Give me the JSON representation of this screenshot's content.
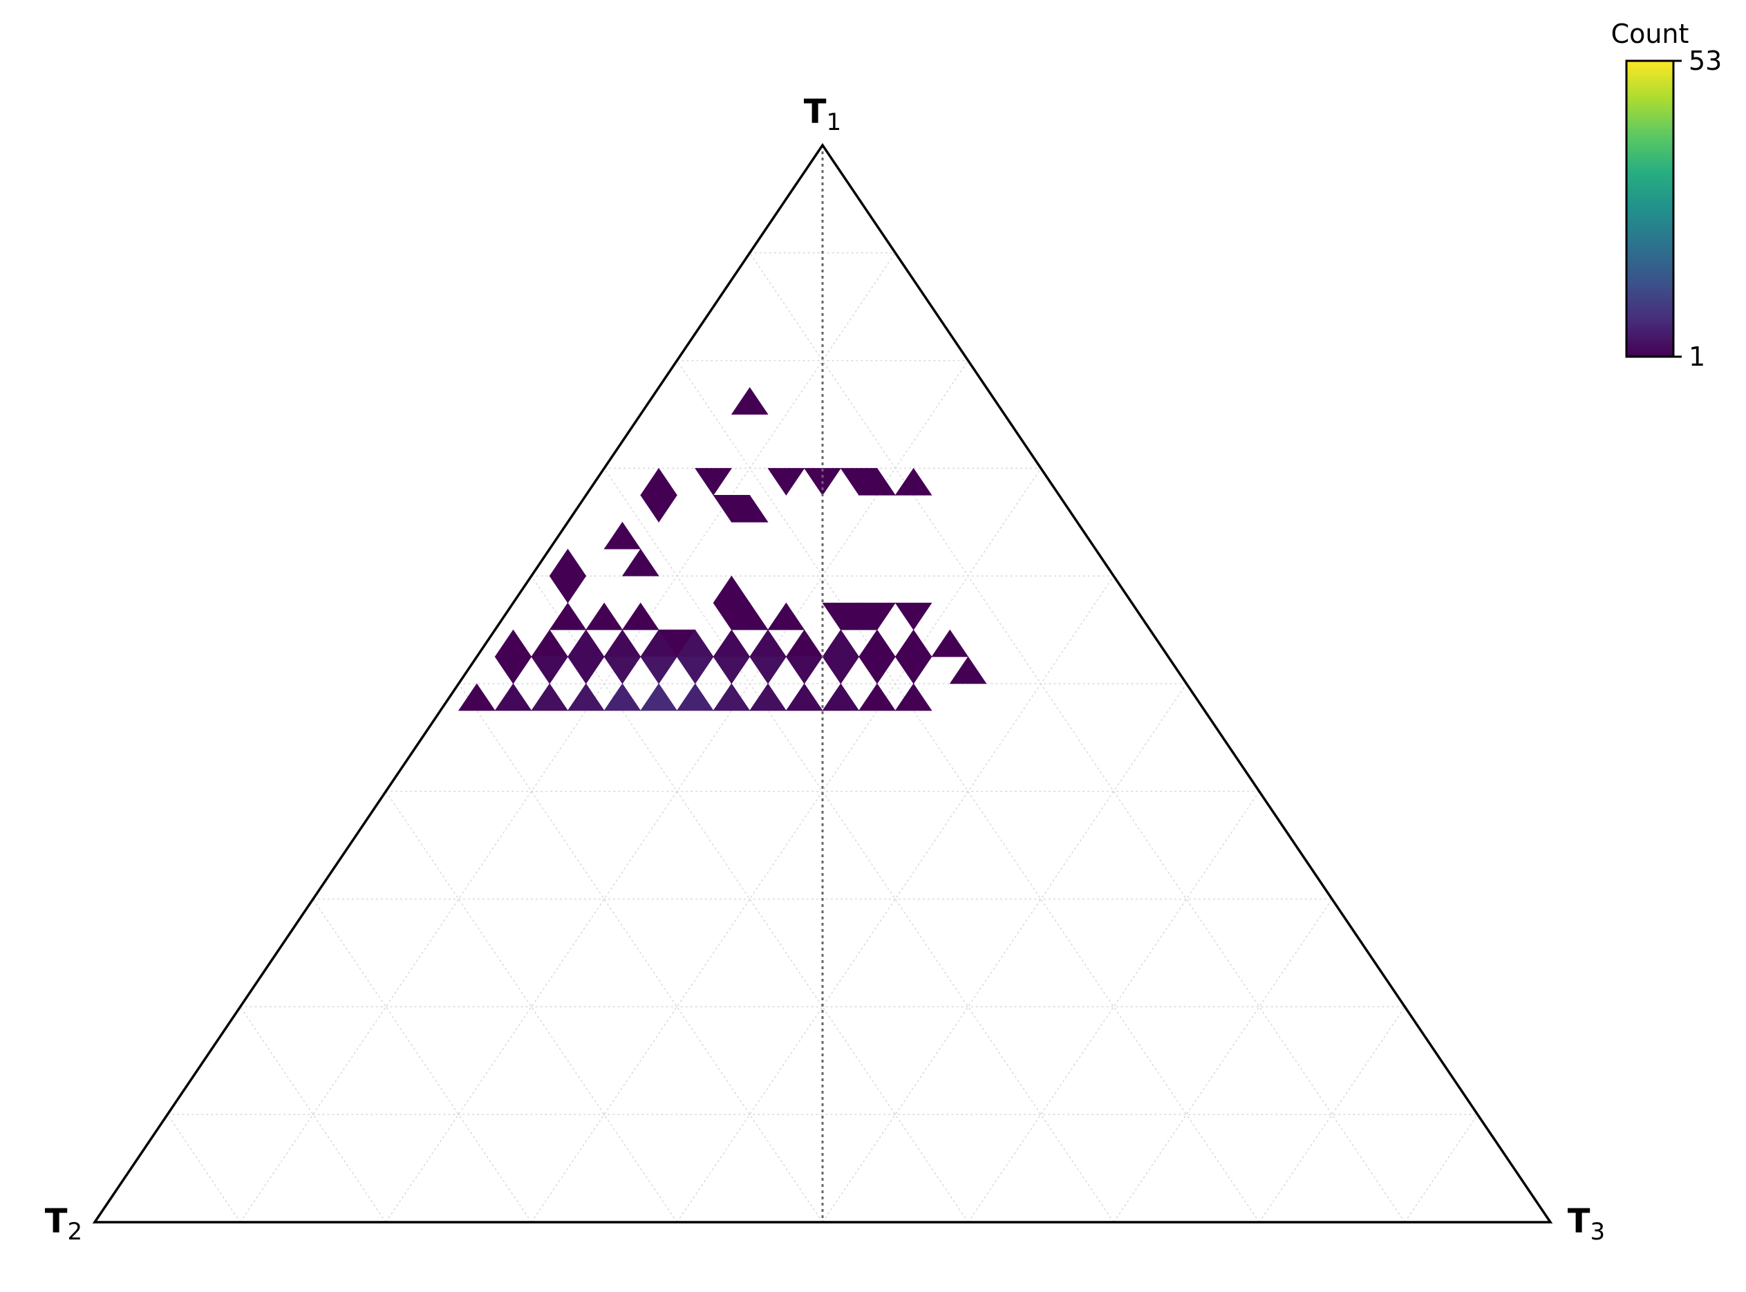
{
  "chart_data": {
    "type": "heatmap",
    "subtype": "ternary-hexbin-triangles",
    "resolution": 10,
    "vertices": {
      "top": {
        "main": "T",
        "sub": "1"
      },
      "left": {
        "main": "T",
        "sub": "2"
      },
      "right": {
        "main": "T",
        "sub": "3"
      }
    },
    "colorbar": {
      "title": "Count",
      "min": 1,
      "max": 53,
      "min_label": "1",
      "max_label": "53",
      "colormap": "viridis"
    },
    "grid": true,
    "median_line": true,
    "cells": [
      [
        0,
        3,
        1,
        0,
        1
      ],
      [
        0,
        3,
        2,
        1,
        1
      ],
      [
        0,
        3,
        4,
        1,
        1
      ],
      [
        0,
        3,
        5,
        1,
        1
      ],
      [
        0,
        4,
        5,
        0,
        1
      ],
      [
        0,
        3,
        6,
        1,
        1
      ],
      [
        0,
        3,
        7,
        0,
        1
      ],
      [
        0,
        3,
        8,
        0,
        1
      ],
      [
        1,
        2,
        2,
        0,
        1
      ],
      [
        1,
        3,
        1,
        1,
        1
      ],
      [
        1,
        3,
        3,
        1,
        1
      ],
      [
        1,
        4,
        1,
        0,
        1
      ],
      [
        1,
        4,
        2,
        0,
        1
      ],
      [
        1,
        4,
        3,
        0,
        1
      ],
      [
        1,
        3,
        4,
        0,
        1
      ],
      [
        1,
        4,
        5,
        1,
        1
      ],
      [
        1,
        4,
        6,
        0,
        1
      ],
      [
        1,
        4,
        7,
        0,
        1
      ],
      [
        1,
        4,
        8,
        1,
        1
      ],
      [
        1,
        4,
        9,
        0,
        1
      ],
      [
        1,
        4,
        9,
        1,
        1
      ],
      [
        1,
        4,
        10,
        1,
        1
      ],
      [
        2,
        3,
        1,
        0,
        1
      ],
      [
        2,
        4,
        0,
        0,
        1
      ],
      [
        2,
        4,
        1,
        0,
        1
      ],
      [
        2,
        4,
        2,
        0,
        2
      ],
      [
        2,
        4,
        3,
        0,
        2
      ],
      [
        2,
        4,
        4,
        0,
        2
      ],
      [
        2,
        4,
        4,
        1,
        1
      ],
      [
        2,
        4,
        5,
        0,
        3
      ],
      [
        2,
        4,
        6,
        0,
        2
      ],
      [
        2,
        4,
        7,
        0,
        2
      ],
      [
        2,
        4,
        8,
        0,
        1
      ],
      [
        2,
        4,
        9,
        0,
        2
      ],
      [
        2,
        4,
        10,
        0,
        1
      ],
      [
        2,
        4,
        11,
        0,
        1
      ],
      [
        2,
        4,
        12,
        0,
        1
      ],
      [
        3,
        3,
        0,
        0,
        1
      ],
      [
        3,
        3,
        2,
        0,
        1
      ],
      [
        3,
        4,
        0,
        1,
        1
      ],
      [
        3,
        4,
        1,
        1,
        2
      ],
      [
        3,
        4,
        2,
        1,
        2
      ],
      [
        3,
        4,
        3,
        1,
        3
      ],
      [
        3,
        4,
        4,
        1,
        4
      ],
      [
        3,
        4,
        5,
        1,
        4
      ],
      [
        3,
        4,
        6,
        1,
        3
      ],
      [
        3,
        4,
        7,
        1,
        3
      ],
      [
        3,
        4,
        8,
        1,
        2
      ],
      [
        3,
        4,
        9,
        1,
        2
      ],
      [
        3,
        4,
        10,
        1,
        1
      ],
      [
        3,
        4,
        11,
        1,
        1
      ],
      [
        3,
        4,
        13,
        0,
        1
      ],
      [
        4,
        3,
        0,
        1,
        1
      ],
      [
        4,
        4,
        0,
        0,
        1
      ],
      [
        4,
        4,
        1,
        0,
        2
      ],
      [
        4,
        4,
        2,
        0,
        3
      ],
      [
        4,
        4,
        3,
        0,
        4
      ],
      [
        4,
        4,
        4,
        0,
        6
      ],
      [
        4,
        4,
        5,
        0,
        7
      ],
      [
        4,
        4,
        6,
        0,
        6
      ],
      [
        4,
        4,
        7,
        0,
        4
      ],
      [
        4,
        4,
        8,
        0,
        3
      ],
      [
        4,
        4,
        9,
        0,
        2
      ],
      [
        4,
        4,
        10,
        0,
        2
      ],
      [
        4,
        4,
        11,
        0,
        1
      ],
      [
        4,
        4,
        12,
        0,
        1
      ]
    ]
  }
}
